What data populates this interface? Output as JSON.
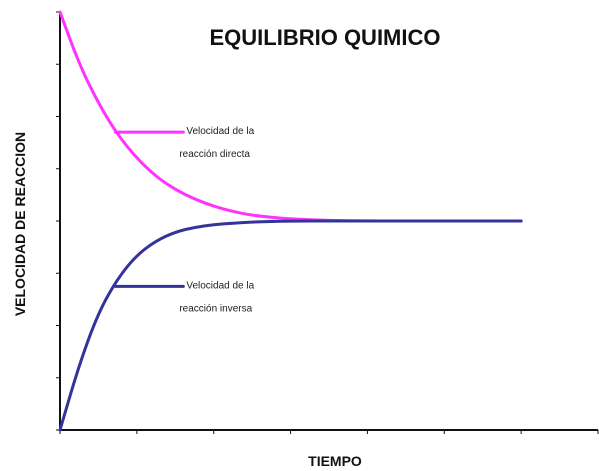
{
  "chart_data": {
    "type": "line",
    "title": "EQUILIBRIO QUIMICO",
    "xlabel": "TIEMPO",
    "ylabel": "VELOCIDAD DE REACCION",
    "x": [
      0,
      0.25,
      0.5,
      0.75,
      1,
      1.25,
      1.5,
      1.75,
      2,
      2.25,
      2.5,
      2.75,
      3,
      3.5,
      4,
      4.5,
      5,
      5.5,
      6
    ],
    "xlim": [
      0,
      7
    ],
    "ylim": [
      0,
      8
    ],
    "grid": false,
    "series": [
      {
        "name": "Velocidad de la reacción directa",
        "color": "#ff33ff",
        "values": [
          8,
          7.0,
          6.25,
          5.65,
          5.2,
          4.85,
          4.6,
          4.42,
          4.28,
          4.18,
          4.11,
          4.07,
          4.04,
          4.01,
          4.0,
          4.0,
          4.0,
          4.0,
          4.0
        ]
      },
      {
        "name": "Velocidad de la reacción inversa",
        "color": "#333399",
        "values": [
          0,
          1.25,
          2.25,
          2.9,
          3.35,
          3.62,
          3.79,
          3.88,
          3.93,
          3.96,
          3.98,
          3.99,
          4.0,
          4.0,
          4.0,
          4.0,
          4.0,
          4.0,
          4.0
        ]
      }
    ],
    "legend": [
      {
        "line1": "Velocidad de la",
        "line2": "reacción directa",
        "color": "#ff33ff",
        "anchor_series": 0
      },
      {
        "line1": "Velocidad de la",
        "line2": "reacción inversa",
        "color": "#333399",
        "anchor_series": 1
      }
    ]
  }
}
